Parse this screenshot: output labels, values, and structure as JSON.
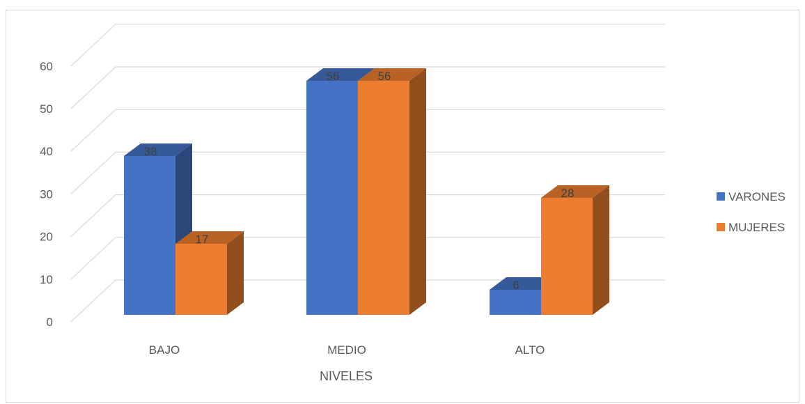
{
  "chart_data": {
    "type": "bar",
    "style": "3d-clustered-column",
    "title": "",
    "xlabel": "NIVELES",
    "ylabel": "",
    "categories": [
      "BAJO",
      "MEDIO",
      "ALTO"
    ],
    "series": [
      {
        "name": "VARONES",
        "values": [
          38,
          56,
          6
        ],
        "labels": [
          "38",
          "56",
          "6"
        ],
        "color": "#4472C4"
      },
      {
        "name": "MUJERES",
        "values": [
          17,
          56,
          28
        ],
        "labels": [
          "17",
          "56",
          "28"
        ],
        "color": "#ED7D31"
      }
    ],
    "ylim": [
      0,
      60
    ],
    "yticks": [
      0,
      10,
      20,
      30,
      40,
      50,
      60
    ],
    "ytick_labels": [
      "0",
      "10",
      "20",
      "30",
      "40",
      "50",
      "60"
    ],
    "grid": true,
    "legend_position": "right"
  }
}
